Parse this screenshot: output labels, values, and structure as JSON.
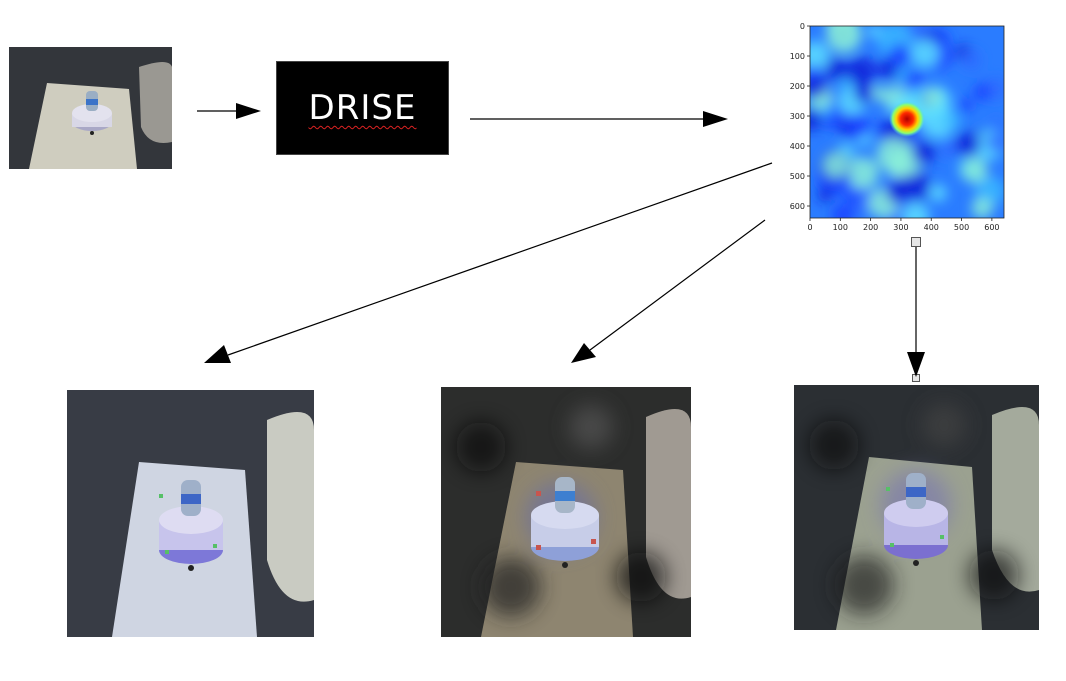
{
  "diagram": {
    "model_label": "DRISE"
  },
  "chart_data": {
    "type": "heatmap",
    "title": "",
    "xlabel": "",
    "ylabel": "",
    "x_ticks": [
      0,
      100,
      200,
      300,
      400,
      500,
      600
    ],
    "y_ticks": [
      0,
      100,
      200,
      300,
      400,
      500,
      600
    ],
    "xlim": [
      0,
      640
    ],
    "ylim": [
      640,
      0
    ],
    "colormap": "jet",
    "peak": {
      "x": 320,
      "y": 310,
      "value": 1.0
    },
    "grid": false
  },
  "colors": {
    "photo_floor": "#3a3d42",
    "table": "#c8c6b8",
    "platform": "#d8d6e8",
    "heat_low": "#1a3cff",
    "heat_mid": "#44d0ff",
    "heat_high": "#cc0000"
  }
}
